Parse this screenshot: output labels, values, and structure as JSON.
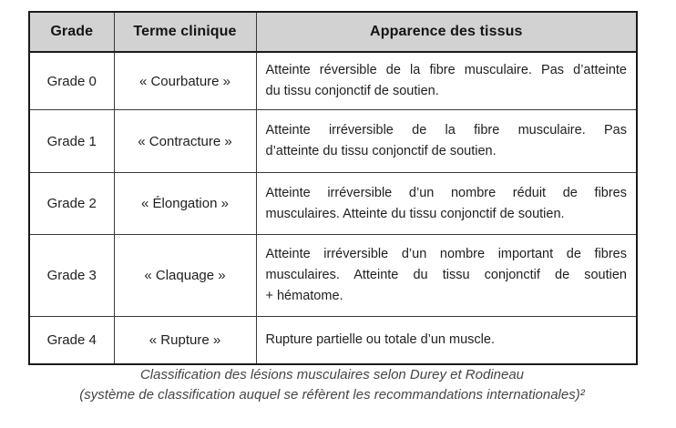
{
  "table": {
    "columns": [
      "Grade",
      "Terme clinique",
      "Apparence des tissus"
    ],
    "rows": [
      {
        "grade": "Grade 0",
        "term": "« Courbature »",
        "description_lines": [
          "Atteinte réversible de la fibre musculaire. Pas d’atteinte",
          "du tissu conjonctif de soutien."
        ]
      },
      {
        "grade": "Grade 1",
        "term": "« Contracture »",
        "description_lines": [
          "Atteinte irréversible de la fibre musculaire. Pas",
          "d’atteinte du tissu conjonctif de soutien."
        ]
      },
      {
        "grade": "Grade 2",
        "term": "« Élongation »",
        "description_lines": [
          "Atteinte irréversible d’un nombre réduit de fibres",
          "musculaires. Atteinte du tissu conjonctif de soutien."
        ]
      },
      {
        "grade": "Grade 3",
        "term": "« Claquage »",
        "description_lines": [
          "Atteinte irréversible d’un nombre important de fibres",
          "musculaires. Atteinte du tissu conjonctif de soutien",
          "+ hématome."
        ]
      },
      {
        "grade": "Grade 4",
        "term": "« Rupture »",
        "description_lines": [
          "Rupture partielle ou totale d’un muscle."
        ]
      }
    ]
  },
  "caption": {
    "line1": "Classification des lésions musculaires selon Durey et Rodineau",
    "line2": "(système de classification auquel se réfèrent les recommandations internationales)²"
  },
  "colors": {
    "header_background": "#d2d2d2",
    "outer_border": "#1a1a1a",
    "inner_border": "#3a3a3a",
    "body_text": "#1f1f1f",
    "caption_text": "#454545",
    "page_background": "#ffffff"
  }
}
